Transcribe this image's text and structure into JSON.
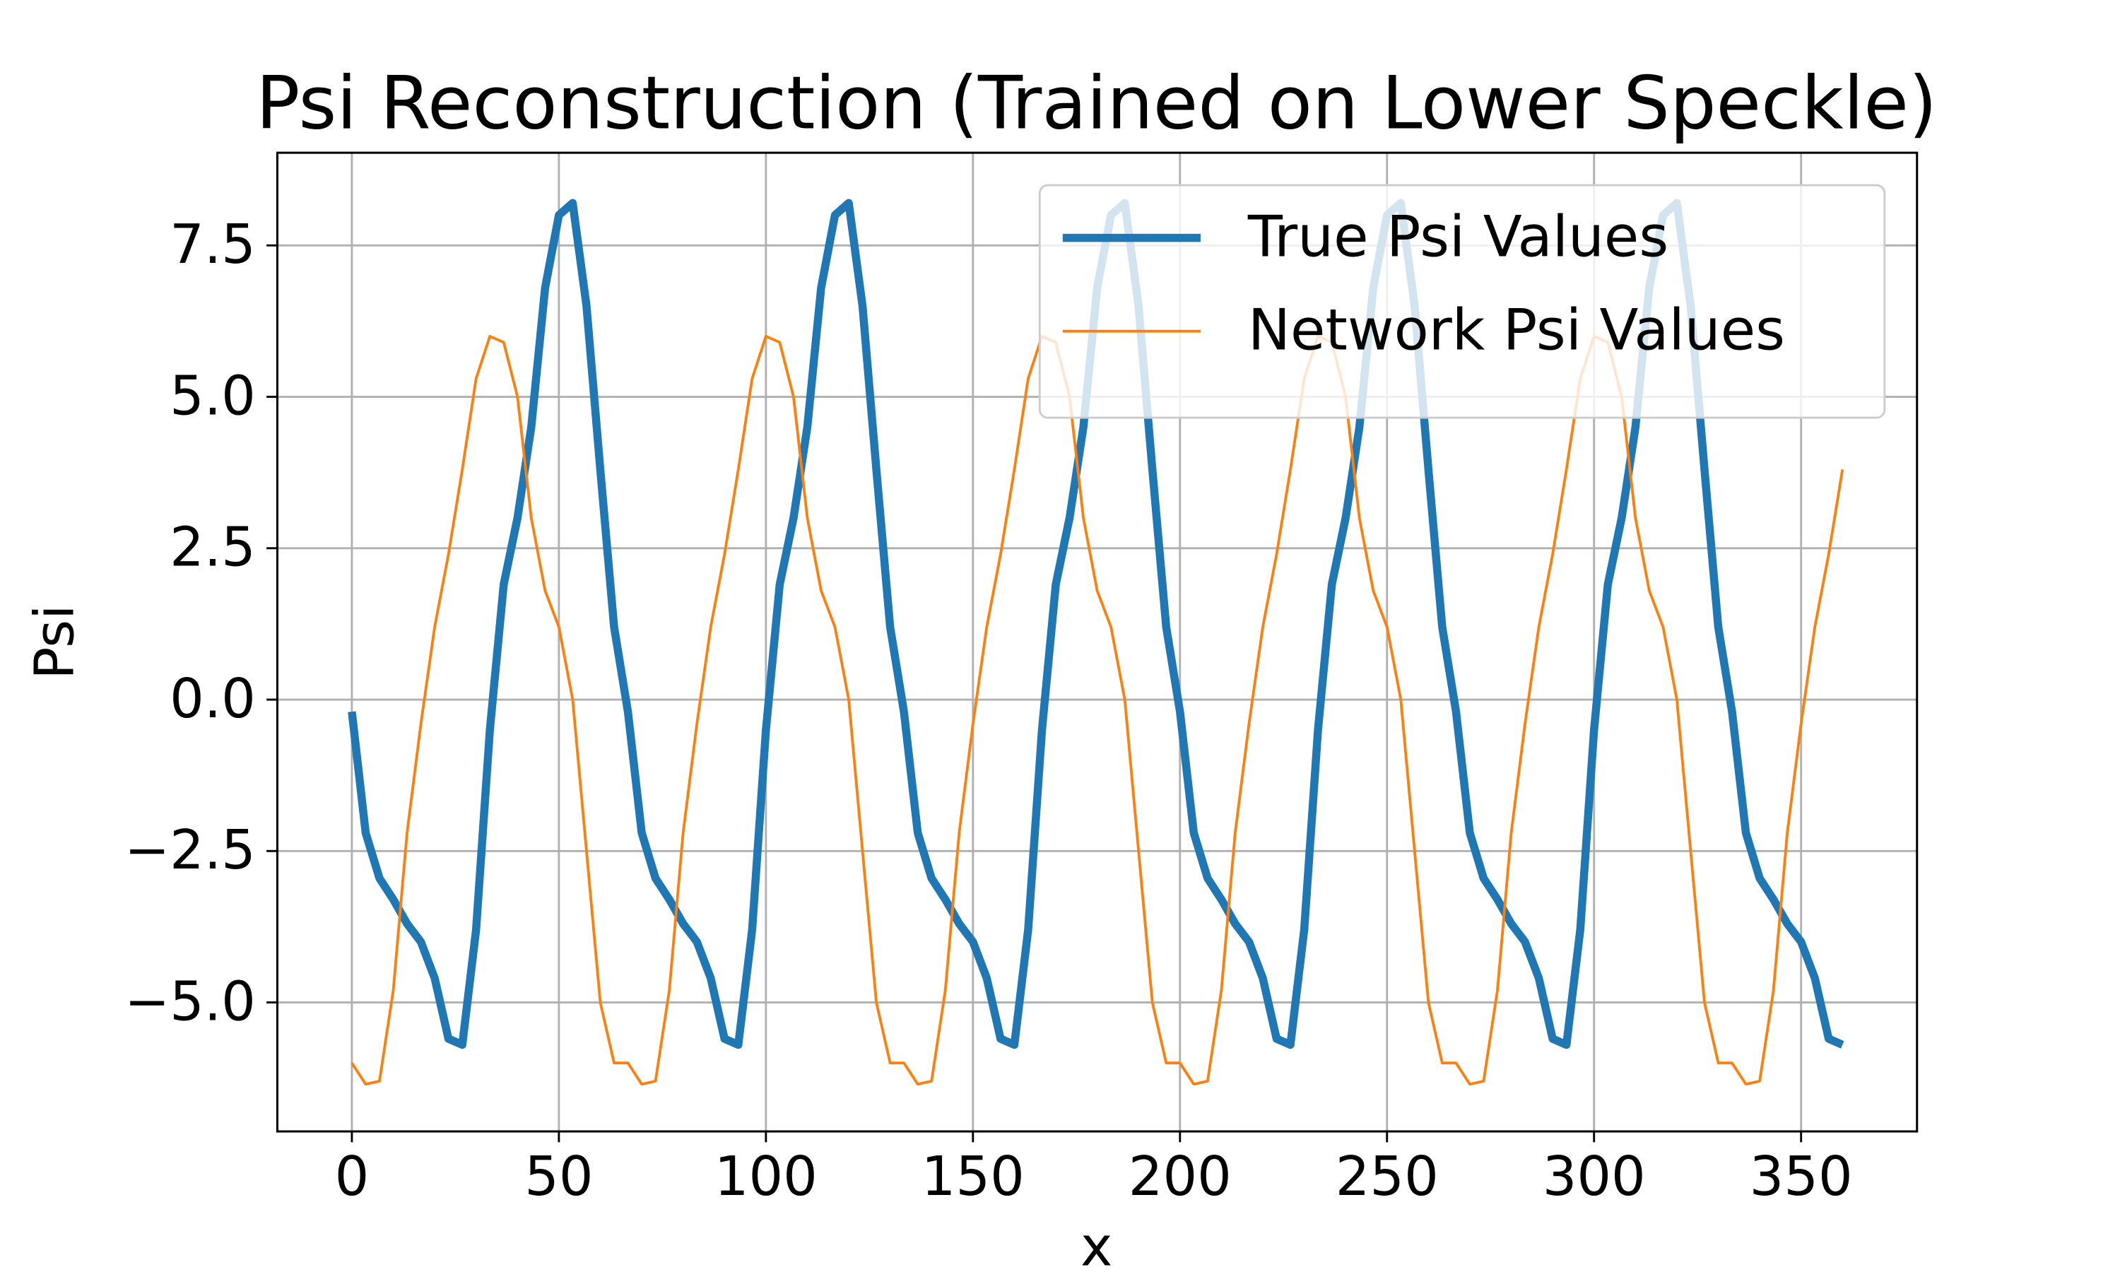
{
  "chart_data": {
    "type": "line",
    "title": "Psi Reconstruction (Trained on Lower Speckle)",
    "x_label": "x",
    "y_label": "Psi",
    "x": [
      0,
      3.33,
      6.67,
      10,
      13.33,
      16.67,
      20,
      23.33,
      26.67,
      30,
      33.33,
      36.67,
      40,
      43.33,
      46.67,
      50,
      53.33,
      56.67,
      60,
      63.33,
      66.67,
      70,
      73.33,
      76.67,
      80,
      83.33,
      86.67,
      90,
      93.33,
      96.67,
      100,
      103.33,
      106.67,
      110,
      113.33,
      116.67,
      120,
      123.33,
      126.67,
      130,
      133.33,
      136.67,
      140,
      143.33,
      146.67,
      150,
      153.33,
      156.67,
      160,
      163.33,
      166.67,
      170,
      173.33,
      176.67,
      180,
      183.33,
      186.67,
      190,
      193.33,
      196.67,
      200,
      203.33,
      206.67,
      210,
      213.33,
      216.67,
      220,
      223.33,
      226.67,
      230,
      233.33,
      236.67,
      240,
      243.33,
      246.67,
      250,
      253.33,
      256.67,
      260,
      263.33,
      266.67,
      270,
      273.33,
      276.67,
      280,
      283.33,
      286.67,
      290,
      293.33,
      296.67,
      300,
      303.33,
      306.67,
      310,
      313.33,
      316.67,
      320,
      323.33,
      326.67,
      330,
      333.33,
      336.67,
      340,
      343.33,
      346.67,
      350,
      353.33,
      356.67,
      360
    ],
    "series": [
      {
        "name": "True Psi Values",
        "color": "#1f77b4",
        "width": 6,
        "values": [
          -0.2,
          -2.2,
          -2.95,
          -3.3,
          -3.7,
          -4.0,
          -4.6,
          -5.6,
          -5.7,
          -3.8,
          -0.5,
          1.9,
          3.0,
          4.5,
          6.8,
          8.0,
          8.2,
          6.5,
          3.8,
          1.2,
          -0.2,
          -2.2,
          -2.95,
          -3.3,
          -3.7,
          -4.0,
          -4.6,
          -5.6,
          -5.7,
          -3.8,
          -0.5,
          1.9,
          3.0,
          4.5,
          6.8,
          8.0,
          8.2,
          6.5,
          3.8,
          1.2,
          -0.2,
          -2.2,
          -2.95,
          -3.3,
          -3.7,
          -4.0,
          -4.6,
          -5.6,
          -5.7,
          -3.8,
          -0.5,
          1.9,
          3.0,
          4.5,
          6.8,
          8.0,
          8.2,
          6.5,
          3.8,
          1.2,
          -0.2,
          -2.2,
          -2.95,
          -3.3,
          -3.7,
          -4.0,
          -4.6,
          -5.6,
          -5.7,
          -3.8,
          -0.5,
          1.9,
          3.0,
          4.5,
          6.8,
          8.0,
          8.2,
          6.5,
          3.8,
          1.2,
          -0.2,
          -2.2,
          -2.95,
          -3.3,
          -3.7,
          -4.0,
          -4.6,
          -5.6,
          -5.7,
          -3.8,
          -0.5,
          1.9,
          3.0,
          4.5,
          6.8,
          8.0,
          8.2,
          6.5,
          3.8,
          1.2,
          -0.2,
          -2.2,
          -2.95,
          -3.3,
          -3.7,
          -4.0,
          -4.6,
          -5.6,
          -5.7
        ]
      },
      {
        "name": "Network Psi Values",
        "color": "#ff7f0e",
        "width": 2,
        "values": [
          -6.0,
          -6.35,
          -6.3,
          -4.8,
          -2.2,
          -0.4,
          1.2,
          2.4,
          3.8,
          5.3,
          6.0,
          5.9,
          5.0,
          3.0,
          1.8,
          1.2,
          0.0,
          -2.5,
          -5.0,
          -6.0,
          -6.0,
          -6.35,
          -6.3,
          -4.8,
          -2.2,
          -0.4,
          1.2,
          2.4,
          3.8,
          5.3,
          6.0,
          5.9,
          5.0,
          3.0,
          1.8,
          1.2,
          0.0,
          -2.5,
          -5.0,
          -6.0,
          -6.0,
          -6.35,
          -6.3,
          -4.8,
          -2.2,
          -0.4,
          1.2,
          2.4,
          3.8,
          5.3,
          6.0,
          5.9,
          5.0,
          3.0,
          1.8,
          1.2,
          0.0,
          -2.5,
          -5.0,
          -6.0,
          -6.0,
          -6.35,
          -6.3,
          -4.8,
          -2.2,
          -0.4,
          1.2,
          2.4,
          3.8,
          5.3,
          6.0,
          5.9,
          5.0,
          3.0,
          1.8,
          1.2,
          0.0,
          -2.5,
          -5.0,
          -6.0,
          -6.0,
          -6.35,
          -6.3,
          -4.8,
          -2.2,
          -0.4,
          1.2,
          2.4,
          3.8,
          5.3,
          6.0,
          5.9,
          5.0,
          3.0,
          1.8,
          1.2,
          0.0,
          -2.5,
          -5.0,
          -6.0,
          -6.0,
          -6.35,
          -6.3,
          -4.8,
          -2.2,
          -0.4,
          1.2,
          2.4,
          3.8
        ]
      }
    ],
    "xlim": [
      -18,
      378
    ],
    "ylim": [
      -7.13,
      9.03
    ],
    "xticks": [
      0,
      50,
      100,
      150,
      200,
      250,
      300,
      350
    ],
    "yticks": [
      {
        "value": -5,
        "label": "−5.0"
      },
      {
        "value": -2.5,
        "label": "−2.5"
      },
      {
        "value": 0,
        "label": "0.0"
      },
      {
        "value": 2.5,
        "label": "2.5"
      },
      {
        "value": 5,
        "label": "5.0"
      },
      {
        "value": 7.5,
        "label": "7.5"
      }
    ],
    "grid": true,
    "legend": "upper right"
  }
}
